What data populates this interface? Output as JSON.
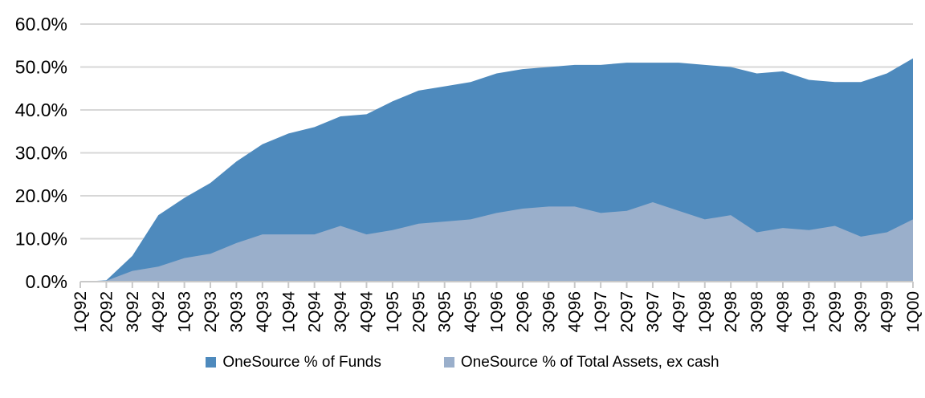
{
  "chart_data": {
    "type": "area",
    "title": "",
    "xlabel": "",
    "ylabel": "",
    "categories": [
      "1Q92",
      "2Q92",
      "3Q92",
      "4Q92",
      "1Q93",
      "2Q93",
      "3Q93",
      "4Q93",
      "1Q94",
      "2Q94",
      "3Q94",
      "4Q94",
      "1Q95",
      "2Q95",
      "3Q95",
      "4Q95",
      "1Q96",
      "2Q96",
      "3Q96",
      "4Q96",
      "1Q97",
      "2Q97",
      "3Q97",
      "4Q97",
      "1Q98",
      "2Q98",
      "3Q98",
      "4Q98",
      "1Q99",
      "2Q99",
      "3Q99",
      "4Q99",
      "1Q00"
    ],
    "series": [
      {
        "name": "OneSource % of Funds",
        "color": "#4E8ABD",
        "values": [
          0,
          0.3,
          6,
          15.5,
          19.5,
          23,
          28,
          32,
          34.5,
          36,
          38.5,
          39,
          42,
          44.5,
          45.5,
          46.5,
          48.5,
          49.5,
          50,
          50.5,
          50.5,
          51,
          51,
          51,
          50.5,
          50,
          48.5,
          49,
          47,
          46.5,
          46.5,
          48.5,
          52
        ]
      },
      {
        "name": "OneSource % of Total Assets, ex cash",
        "color": "#9AAFCB",
        "values": [
          0,
          0.2,
          2.5,
          3.5,
          5.5,
          6.5,
          9,
          11,
          11,
          11,
          13,
          11,
          12,
          13.5,
          14,
          14.5,
          16,
          17,
          17.5,
          17.5,
          16,
          16.5,
          18.5,
          16.5,
          14.5,
          15.5,
          11.5,
          12.5,
          12,
          13,
          10.5,
          11.5,
          14.5
        ]
      }
    ],
    "ylim": [
      0,
      60
    ],
    "y_tick_step": 10,
    "y_tick_labels": [
      "0.0%",
      "10.0%",
      "20.0%",
      "30.0%",
      "40.0%",
      "50.0%",
      "60.0%"
    ],
    "grid": true,
    "gridline_color": "#D7D7D7",
    "axis_tick_color": "#C9C9C9",
    "axis_text_color": "#000000",
    "legend_position": "bottom"
  }
}
